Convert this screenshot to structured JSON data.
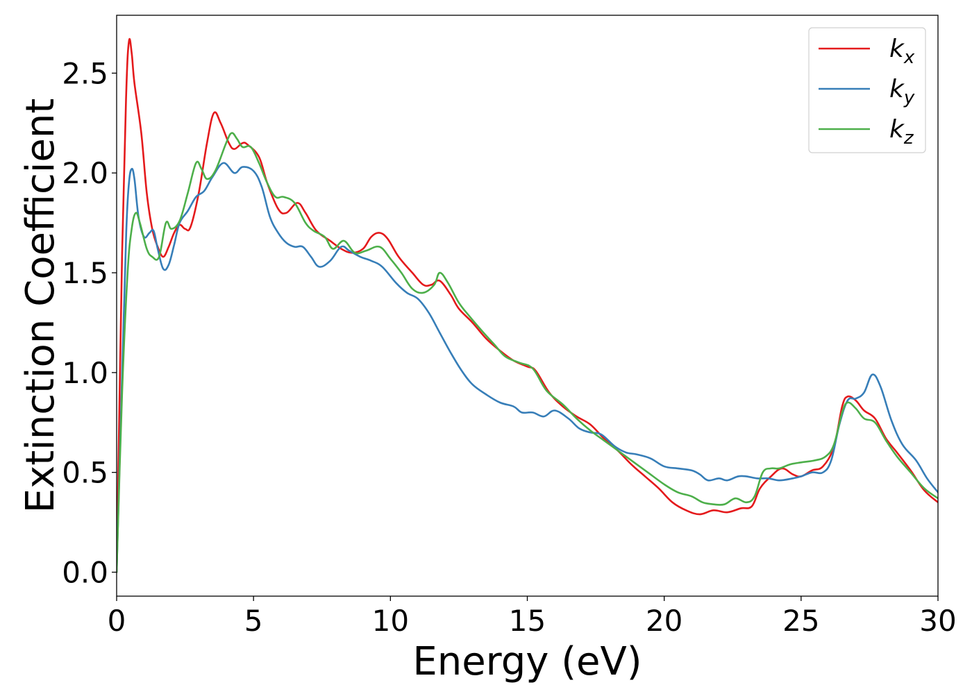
{
  "chart_data": {
    "type": "line",
    "title": "",
    "xlabel": "Energy (eV)",
    "ylabel": "Extinction Coefficient",
    "xlim": [
      0,
      30
    ],
    "ylim": [
      -0.12,
      2.79
    ],
    "xticks": [
      0,
      5,
      10,
      15,
      20,
      25,
      30
    ],
    "xtick_labels": [
      "0",
      "5",
      "10",
      "15",
      "20",
      "25",
      "30"
    ],
    "yticks": [
      0.0,
      0.5,
      1.0,
      1.5,
      2.0,
      2.5
    ],
    "ytick_labels": [
      "0.0",
      "0.5",
      "1.0",
      "1.5",
      "2.0",
      "2.5"
    ],
    "grid": false,
    "legend_position": "top-right",
    "series": [
      {
        "name": "k_x",
        "base": "k",
        "sub": "x",
        "color": "#e41a1c",
        "points": [
          [
            0,
            0
          ],
          [
            0.2,
            1.6
          ],
          [
            0.35,
            2.4
          ],
          [
            0.45,
            2.66
          ],
          [
            0.55,
            2.6
          ],
          [
            0.65,
            2.45
          ],
          [
            0.9,
            2.2
          ],
          [
            1.1,
            1.9
          ],
          [
            1.3,
            1.72
          ],
          [
            1.5,
            1.63
          ],
          [
            1.7,
            1.58
          ],
          [
            1.9,
            1.63
          ],
          [
            2.1,
            1.7
          ],
          [
            2.3,
            1.74
          ],
          [
            2.5,
            1.72
          ],
          [
            2.7,
            1.73
          ],
          [
            3.0,
            1.9
          ],
          [
            3.3,
            2.15
          ],
          [
            3.55,
            2.3
          ],
          [
            3.8,
            2.25
          ],
          [
            4.1,
            2.15
          ],
          [
            4.3,
            2.12
          ],
          [
            4.6,
            2.15
          ],
          [
            4.8,
            2.14
          ],
          [
            5.2,
            2.08
          ],
          [
            5.5,
            1.95
          ],
          [
            5.9,
            1.82
          ],
          [
            6.2,
            1.8
          ],
          [
            6.6,
            1.85
          ],
          [
            6.9,
            1.8
          ],
          [
            7.3,
            1.71
          ],
          [
            7.8,
            1.66
          ],
          [
            8.2,
            1.62
          ],
          [
            8.6,
            1.6
          ],
          [
            9.0,
            1.62
          ],
          [
            9.3,
            1.68
          ],
          [
            9.6,
            1.7
          ],
          [
            9.9,
            1.67
          ],
          [
            10.3,
            1.58
          ],
          [
            10.8,
            1.5
          ],
          [
            11.2,
            1.44
          ],
          [
            11.5,
            1.44
          ],
          [
            11.8,
            1.46
          ],
          [
            12.2,
            1.39
          ],
          [
            12.5,
            1.32
          ],
          [
            13.0,
            1.25
          ],
          [
            13.5,
            1.17
          ],
          [
            14.0,
            1.11
          ],
          [
            14.5,
            1.06
          ],
          [
            15.0,
            1.03
          ],
          [
            15.3,
            1.01
          ],
          [
            15.8,
            0.9
          ],
          [
            16.3,
            0.83
          ],
          [
            16.8,
            0.78
          ],
          [
            17.3,
            0.74
          ],
          [
            17.8,
            0.67
          ],
          [
            18.3,
            0.61
          ],
          [
            18.8,
            0.54
          ],
          [
            19.3,
            0.48
          ],
          [
            19.8,
            0.42
          ],
          [
            20.3,
            0.35
          ],
          [
            20.8,
            0.31
          ],
          [
            21.3,
            0.29
          ],
          [
            21.8,
            0.31
          ],
          [
            22.3,
            0.3
          ],
          [
            22.8,
            0.32
          ],
          [
            23.2,
            0.33
          ],
          [
            23.5,
            0.42
          ],
          [
            23.9,
            0.48
          ],
          [
            24.3,
            0.52
          ],
          [
            24.7,
            0.49
          ],
          [
            25.0,
            0.48
          ],
          [
            25.4,
            0.51
          ],
          [
            25.8,
            0.53
          ],
          [
            26.2,
            0.63
          ],
          [
            26.5,
            0.83
          ],
          [
            26.7,
            0.88
          ],
          [
            27.0,
            0.86
          ],
          [
            27.3,
            0.81
          ],
          [
            27.7,
            0.77
          ],
          [
            28.1,
            0.67
          ],
          [
            28.5,
            0.6
          ],
          [
            29.0,
            0.51
          ],
          [
            29.5,
            0.41
          ],
          [
            30.0,
            0.35
          ]
        ]
      },
      {
        "name": "k_y",
        "base": "k",
        "sub": "y",
        "color": "#377eb8",
        "points": [
          [
            0,
            0
          ],
          [
            0.2,
            1.0
          ],
          [
            0.35,
            1.7
          ],
          [
            0.45,
            1.95
          ],
          [
            0.55,
            2.02
          ],
          [
            0.65,
            1.97
          ],
          [
            0.8,
            1.78
          ],
          [
            1.0,
            1.68
          ],
          [
            1.2,
            1.7
          ],
          [
            1.35,
            1.71
          ],
          [
            1.5,
            1.62
          ],
          [
            1.7,
            1.52
          ],
          [
            1.9,
            1.54
          ],
          [
            2.1,
            1.64
          ],
          [
            2.3,
            1.75
          ],
          [
            2.6,
            1.81
          ],
          [
            2.9,
            1.88
          ],
          [
            3.2,
            1.91
          ],
          [
            3.5,
            1.98
          ],
          [
            3.9,
            2.05
          ],
          [
            4.3,
            2.0
          ],
          [
            4.6,
            2.03
          ],
          [
            5.0,
            2.01
          ],
          [
            5.3,
            1.93
          ],
          [
            5.6,
            1.78
          ],
          [
            5.9,
            1.7
          ],
          [
            6.2,
            1.65
          ],
          [
            6.5,
            1.63
          ],
          [
            6.8,
            1.63
          ],
          [
            7.1,
            1.58
          ],
          [
            7.4,
            1.53
          ],
          [
            7.8,
            1.56
          ],
          [
            8.2,
            1.63
          ],
          [
            8.5,
            1.61
          ],
          [
            8.9,
            1.58
          ],
          [
            9.3,
            1.56
          ],
          [
            9.7,
            1.53
          ],
          [
            10.2,
            1.45
          ],
          [
            10.6,
            1.4
          ],
          [
            11.0,
            1.37
          ],
          [
            11.4,
            1.3
          ],
          [
            11.8,
            1.2
          ],
          [
            12.2,
            1.1
          ],
          [
            12.6,
            1.01
          ],
          [
            13.0,
            0.94
          ],
          [
            13.5,
            0.89
          ],
          [
            14.0,
            0.85
          ],
          [
            14.5,
            0.83
          ],
          [
            14.8,
            0.8
          ],
          [
            15.2,
            0.8
          ],
          [
            15.6,
            0.78
          ],
          [
            16.0,
            0.81
          ],
          [
            16.5,
            0.77
          ],
          [
            16.9,
            0.72
          ],
          [
            17.3,
            0.7
          ],
          [
            17.7,
            0.69
          ],
          [
            18.2,
            0.63
          ],
          [
            18.6,
            0.6
          ],
          [
            19.0,
            0.59
          ],
          [
            19.5,
            0.57
          ],
          [
            20.0,
            0.53
          ],
          [
            20.5,
            0.52
          ],
          [
            21.0,
            0.51
          ],
          [
            21.3,
            0.49
          ],
          [
            21.6,
            0.46
          ],
          [
            22.0,
            0.47
          ],
          [
            22.3,
            0.46
          ],
          [
            22.7,
            0.48
          ],
          [
            23.0,
            0.48
          ],
          [
            23.4,
            0.47
          ],
          [
            23.8,
            0.47
          ],
          [
            24.2,
            0.46
          ],
          [
            24.7,
            0.47
          ],
          [
            25.0,
            0.48
          ],
          [
            25.4,
            0.5
          ],
          [
            25.8,
            0.5
          ],
          [
            26.1,
            0.56
          ],
          [
            26.4,
            0.74
          ],
          [
            26.7,
            0.86
          ],
          [
            27.0,
            0.87
          ],
          [
            27.3,
            0.9
          ],
          [
            27.6,
            0.99
          ],
          [
            27.9,
            0.93
          ],
          [
            28.3,
            0.76
          ],
          [
            28.7,
            0.64
          ],
          [
            29.2,
            0.56
          ],
          [
            29.6,
            0.47
          ],
          [
            30.0,
            0.4
          ]
        ]
      },
      {
        "name": "k_z",
        "base": "k",
        "sub": "z",
        "color": "#4daf4a",
        "points": [
          [
            0,
            0
          ],
          [
            0.2,
            0.9
          ],
          [
            0.4,
            1.5
          ],
          [
            0.55,
            1.72
          ],
          [
            0.7,
            1.8
          ],
          [
            0.85,
            1.75
          ],
          [
            1.1,
            1.62
          ],
          [
            1.3,
            1.58
          ],
          [
            1.55,
            1.58
          ],
          [
            1.8,
            1.75
          ],
          [
            2.0,
            1.72
          ],
          [
            2.3,
            1.76
          ],
          [
            2.6,
            1.9
          ],
          [
            2.9,
            2.05
          ],
          [
            3.1,
            2.02
          ],
          [
            3.3,
            1.97
          ],
          [
            3.6,
            2.01
          ],
          [
            4.0,
            2.15
          ],
          [
            4.2,
            2.2
          ],
          [
            4.4,
            2.17
          ],
          [
            4.6,
            2.13
          ],
          [
            4.9,
            2.13
          ],
          [
            5.2,
            2.05
          ],
          [
            5.5,
            1.95
          ],
          [
            5.8,
            1.88
          ],
          [
            6.1,
            1.88
          ],
          [
            6.5,
            1.85
          ],
          [
            6.9,
            1.75
          ],
          [
            7.2,
            1.71
          ],
          [
            7.6,
            1.68
          ],
          [
            7.9,
            1.62
          ],
          [
            8.3,
            1.66
          ],
          [
            8.7,
            1.6
          ],
          [
            9.1,
            1.61
          ],
          [
            9.6,
            1.63
          ],
          [
            10.0,
            1.57
          ],
          [
            10.4,
            1.5
          ],
          [
            10.8,
            1.42
          ],
          [
            11.2,
            1.4
          ],
          [
            11.6,
            1.44
          ],
          [
            11.8,
            1.5
          ],
          [
            12.1,
            1.45
          ],
          [
            12.5,
            1.35
          ],
          [
            12.9,
            1.28
          ],
          [
            13.4,
            1.2
          ],
          [
            13.8,
            1.14
          ],
          [
            14.2,
            1.08
          ],
          [
            14.7,
            1.05
          ],
          [
            15.2,
            1.02
          ],
          [
            15.7,
            0.91
          ],
          [
            16.3,
            0.84
          ],
          [
            16.8,
            0.77
          ],
          [
            17.3,
            0.71
          ],
          [
            17.8,
            0.66
          ],
          [
            18.4,
            0.6
          ],
          [
            18.9,
            0.55
          ],
          [
            19.4,
            0.5
          ],
          [
            20.0,
            0.44
          ],
          [
            20.5,
            0.4
          ],
          [
            21.0,
            0.38
          ],
          [
            21.4,
            0.35
          ],
          [
            21.8,
            0.34
          ],
          [
            22.2,
            0.34
          ],
          [
            22.6,
            0.37
          ],
          [
            23.0,
            0.35
          ],
          [
            23.3,
            0.38
          ],
          [
            23.6,
            0.5
          ],
          [
            23.9,
            0.52
          ],
          [
            24.2,
            0.52
          ],
          [
            24.6,
            0.54
          ],
          [
            25.0,
            0.55
          ],
          [
            25.5,
            0.56
          ],
          [
            25.9,
            0.58
          ],
          [
            26.2,
            0.64
          ],
          [
            26.5,
            0.8
          ],
          [
            26.7,
            0.85
          ],
          [
            27.0,
            0.82
          ],
          [
            27.3,
            0.77
          ],
          [
            27.7,
            0.75
          ],
          [
            28.1,
            0.66
          ],
          [
            28.5,
            0.58
          ],
          [
            29.0,
            0.5
          ],
          [
            29.5,
            0.42
          ],
          [
            30.0,
            0.37
          ]
        ]
      }
    ]
  }
}
